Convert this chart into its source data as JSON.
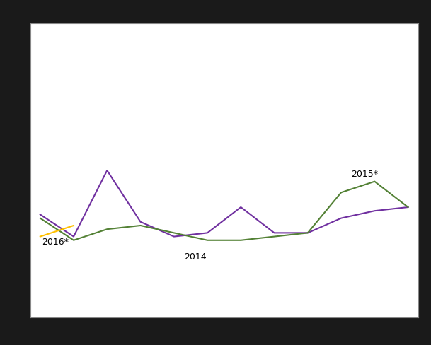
{
  "months": [
    0,
    1,
    2,
    3,
    4,
    5,
    6,
    7,
    8,
    9,
    10,
    11
  ],
  "purple_2014": [
    68,
    62,
    80,
    66,
    62,
    63,
    70,
    63,
    63,
    67,
    69,
    70
  ],
  "green_2015": [
    67,
    61,
    64,
    65,
    63,
    61,
    61,
    62,
    63,
    74,
    77,
    70
  ],
  "orange_2016": [
    62,
    65,
    null,
    null,
    null,
    null,
    null,
    null,
    null,
    null,
    null,
    null
  ],
  "purple_color": "#7030a0",
  "green_color": "#538135",
  "orange_color": "#ffc000",
  "background_color": "#1a1a1a",
  "plot_bg_color": "#ffffff",
  "grid_color": "#c0c0c0",
  "border_color": "#888888",
  "label_2014": "2014",
  "label_2015": "2015*",
  "label_2016": "2016*",
  "linewidth": 1.5,
  "ylim": [
    40,
    120
  ],
  "xlim": [
    -0.3,
    11.3
  ]
}
